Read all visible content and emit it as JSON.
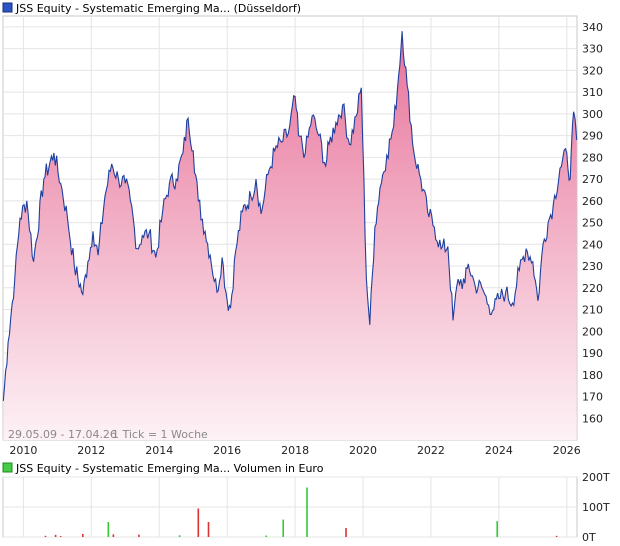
{
  "chart_data": [
    {
      "type": "area",
      "title": "JSS Equity - Systematic Emerging Ma... (Düsseldorf)",
      "date_range": "29.05.09 - 17.04.26",
      "tick_info": "1 Tick = 1 Woche",
      "x_tick_labels": [
        "2010",
        "2012",
        "2014",
        "2016",
        "2018",
        "2020",
        "2022",
        "2024",
        "2026"
      ],
      "y_tick_labels": [
        "160",
        "170",
        "180",
        "190",
        "200",
        "210",
        "220",
        "230",
        "240",
        "250",
        "260",
        "270",
        "280",
        "290",
        "300",
        "310",
        "320",
        "330",
        "340"
      ],
      "xlim": [
        2009.4,
        2026.3
      ],
      "ylim": [
        150,
        345
      ],
      "grid": true,
      "colors": {
        "line": "#1f3f9f",
        "fill_top": "#e8739a",
        "fill_bottom": "#fdf2f6",
        "legend_box": "#2b55c7"
      },
      "series": [
        {
          "x": [
            2009.41,
            2009.55,
            2009.75,
            2009.9,
            2010.1,
            2010.3,
            2010.6,
            2010.9,
            2011.1,
            2011.3,
            2011.5,
            2011.75,
            2011.9,
            2012.05,
            2012.2,
            2012.4,
            2012.6,
            2012.8,
            2013.0,
            2013.15,
            2013.35,
            2013.5,
            2013.7,
            2013.9,
            2014.1,
            2014.3,
            2014.5,
            2014.7,
            2014.85,
            2015.0,
            2015.15,
            2015.35,
            2015.5,
            2015.7,
            2015.85,
            2016.0,
            2016.1,
            2016.25,
            2016.45,
            2016.7,
            2016.85,
            2017.0,
            2017.2,
            2017.4,
            2017.6,
            2017.8,
            2018.0,
            2018.1,
            2018.3,
            2018.5,
            2018.7,
            2018.9,
            2019.0,
            2019.2,
            2019.4,
            2019.6,
            2019.8,
            2019.95,
            2020.1,
            2020.2,
            2020.35,
            2020.5,
            2020.7,
            2020.9,
            2021.05,
            2021.15,
            2021.3,
            2021.5,
            2021.7,
            2021.9,
            2022.1,
            2022.3,
            2022.5,
            2022.65,
            2022.8,
            2023.0,
            2023.1,
            2023.3,
            2023.5,
            2023.7,
            2023.85,
            2024.0,
            2024.2,
            2024.4,
            2024.6,
            2024.8,
            2025.0,
            2025.15,
            2025.3,
            2025.45,
            2025.6,
            2025.8,
            2026.0,
            2026.1,
            2026.2,
            2026.29
          ],
          "y": [
            168,
            195,
            225,
            252,
            260,
            232,
            270,
            282,
            268,
            252,
            230,
            217,
            232,
            246,
            235,
            262,
            277,
            270,
            268,
            260,
            238,
            244,
            245,
            234,
            255,
            268,
            270,
            282,
            298,
            283,
            260,
            246,
            235,
            218,
            234,
            214,
            211,
            237,
            255,
            262,
            270,
            254,
            272,
            283,
            287,
            291,
            308,
            290,
            282,
            299,
            290,
            276,
            286,
            296,
            304,
            286,
            299,
            312,
            224,
            203,
            248,
            266,
            281,
            294,
            318,
            338,
            313,
            282,
            270,
            255,
            248,
            238,
            239,
            205,
            224,
            222,
            231,
            221,
            220,
            212,
            210,
            215,
            218,
            213,
            228,
            238,
            232,
            214,
            240,
            250,
            258,
            275,
            282,
            270,
            301,
            288
          ]
        }
      ]
    },
    {
      "type": "bar",
      "title": "JSS Equity - Systematic Emerging Ma... Volumen in Euro",
      "y_tick_labels": [
        "0T",
        "100T",
        "200T"
      ],
      "ylim": [
        0,
        200
      ],
      "colors": {
        "bar_green": "#33cc33",
        "bar_red": "#dd3333",
        "legend_box": "#44cc44"
      },
      "bars": [
        {
          "x": 2010.65,
          "value": 4,
          "color": "red"
        },
        {
          "x": 2010.95,
          "value": 7,
          "color": "red"
        },
        {
          "x": 2011.1,
          "value": 3,
          "color": "red"
        },
        {
          "x": 2011.75,
          "value": 10,
          "color": "red"
        },
        {
          "x": 2012.5,
          "value": 50,
          "color": "green"
        },
        {
          "x": 2012.65,
          "value": 9,
          "color": "red"
        },
        {
          "x": 2013.4,
          "value": 8,
          "color": "red"
        },
        {
          "x": 2014.6,
          "value": 6,
          "color": "green"
        },
        {
          "x": 2015.15,
          "value": 95,
          "color": "red"
        },
        {
          "x": 2015.45,
          "value": 50,
          "color": "red"
        },
        {
          "x": 2017.15,
          "value": 5,
          "color": "green"
        },
        {
          "x": 2017.65,
          "value": 58,
          "color": "green"
        },
        {
          "x": 2018.35,
          "value": 165,
          "color": "green"
        },
        {
          "x": 2019.5,
          "value": 30,
          "color": "red"
        },
        {
          "x": 2023.95,
          "value": 53,
          "color": "green"
        },
        {
          "x": 2025.7,
          "value": 4,
          "color": "red"
        }
      ]
    }
  ]
}
